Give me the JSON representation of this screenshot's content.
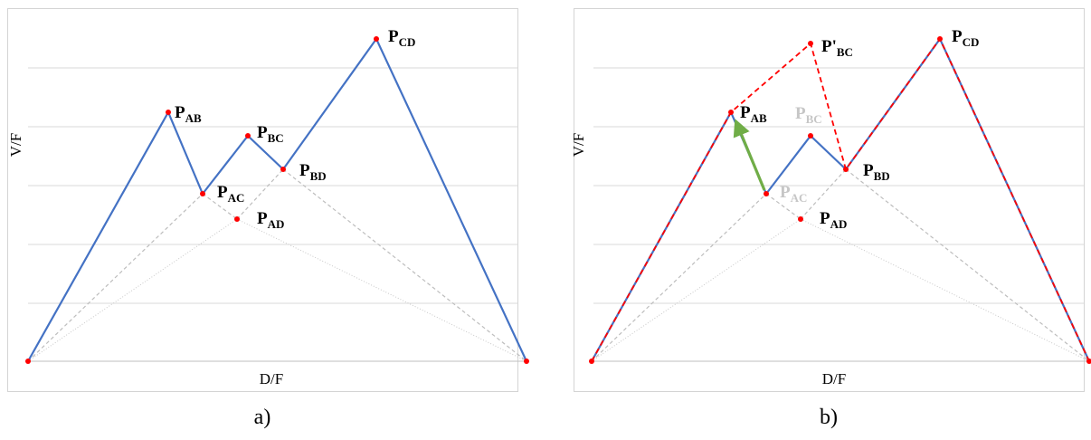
{
  "panels": [
    {
      "id": "a",
      "caption": "a)",
      "xlabel": "D/F",
      "ylabel": "V/F",
      "points": [
        {
          "key": "AB",
          "main": "P",
          "sub": "AB",
          "faded": false
        },
        {
          "key": "BC",
          "main": "P",
          "sub": "BC",
          "faded": false
        },
        {
          "key": "BD",
          "main": "P",
          "sub": "BD",
          "faded": false
        },
        {
          "key": "AC",
          "main": "P",
          "sub": "AC",
          "faded": false
        },
        {
          "key": "AD",
          "main": "P",
          "sub": "AD",
          "faded": false
        },
        {
          "key": "CD",
          "main": "P",
          "sub": "CD",
          "faded": false
        }
      ]
    },
    {
      "id": "b",
      "caption": "b)",
      "xlabel": "D/F",
      "ylabel": "V/F",
      "points": [
        {
          "key": "PBC",
          "main": "P'",
          "sub": "BC",
          "faded": false
        },
        {
          "key": "AB",
          "main": "P",
          "sub": "AB",
          "faded": false
        },
        {
          "key": "BC",
          "main": "P",
          "sub": "BC",
          "faded": true
        },
        {
          "key": "BD",
          "main": "P",
          "sub": "BD",
          "faded": false
        },
        {
          "key": "AC",
          "main": "P",
          "sub": "AC",
          "faded": true
        },
        {
          "key": "AD",
          "main": "P",
          "sub": "AD",
          "faded": false
        },
        {
          "key": "CD",
          "main": "P",
          "sub": "CD",
          "faded": false
        }
      ]
    }
  ],
  "colors": {
    "path": "#4472c4",
    "dashed_path": "#ff0000",
    "point": "#ff0000",
    "arrow": "#70ad47",
    "construction": "#bdbdbd",
    "gridline": "#d9d9d9"
  }
}
